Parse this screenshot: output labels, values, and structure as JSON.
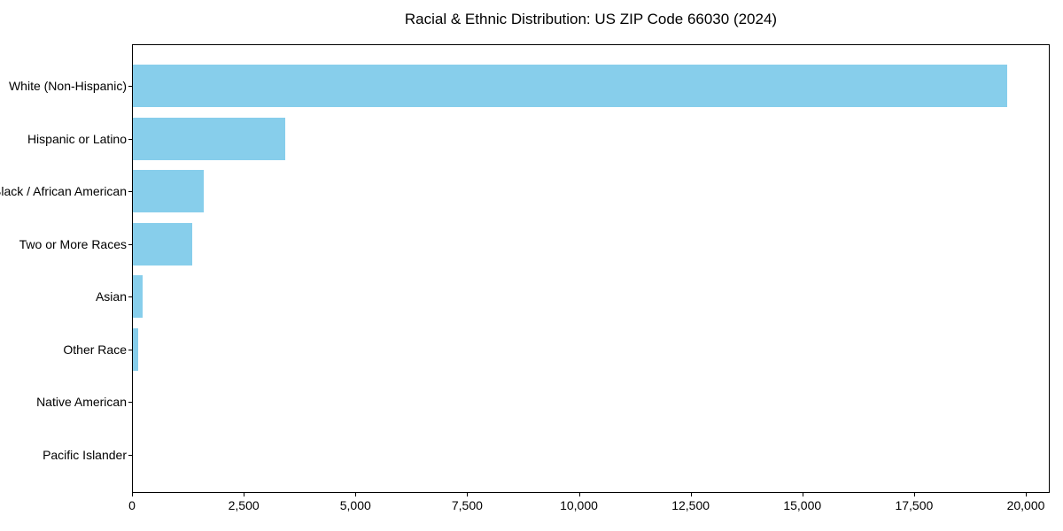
{
  "chart_data": {
    "type": "bar",
    "orientation": "horizontal",
    "title": "Racial & Ethnic Distribution: US ZIP Code 66030 (2024)",
    "categories": [
      "White (Non-Hispanic)",
      "Hispanic or Latino",
      "Black / African American",
      "Two or More Races",
      "Asian",
      "Other Race",
      "Native American",
      "Pacific Islander"
    ],
    "values": [
      19580,
      3420,
      1605,
      1350,
      230,
      135,
      20,
      5
    ],
    "xlabel": "",
    "ylabel": "",
    "xlim": [
      0,
      20535
    ],
    "xticks": [
      0,
      2500,
      5000,
      7500,
      10000,
      12500,
      15000,
      17500,
      20000
    ],
    "xtick_labels": [
      "0",
      "2,500",
      "5,000",
      "7,500",
      "10,000",
      "12,500",
      "15,000",
      "17,500",
      "20,000"
    ],
    "bar_color": "#87CEEB",
    "grid": false,
    "legend": "none",
    "frame": true
  }
}
